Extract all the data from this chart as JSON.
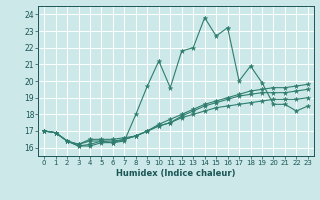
{
  "xlabel": "Humidex (Indice chaleur)",
  "bg_color": "#cce8e8",
  "grid_color": "#ffffff",
  "line_color": "#2e7d6e",
  "xlim": [
    -0.5,
    23.5
  ],
  "ylim": [
    15.5,
    24.5
  ],
  "yticks": [
    16,
    17,
    18,
    19,
    20,
    21,
    22,
    23,
    24
  ],
  "xticks": [
    0,
    1,
    2,
    3,
    4,
    5,
    6,
    7,
    8,
    9,
    10,
    11,
    12,
    13,
    14,
    15,
    16,
    17,
    18,
    19,
    20,
    21,
    22,
    23
  ],
  "line1_x": [
    0,
    1,
    2,
    3,
    4,
    5,
    6,
    7,
    8,
    9,
    10,
    11,
    12,
    13,
    14,
    15,
    16,
    17,
    18,
    19,
    20,
    21,
    22,
    23
  ],
  "line1_y": [
    17.0,
    16.9,
    16.4,
    16.1,
    16.2,
    16.4,
    16.3,
    16.4,
    18.0,
    19.7,
    21.2,
    19.6,
    21.8,
    22.0,
    23.8,
    22.7,
    23.2,
    20.0,
    20.9,
    19.9,
    18.6,
    18.6,
    18.2,
    18.5
  ],
  "line2_x": [
    0,
    1,
    2,
    3,
    4,
    5,
    6,
    7,
    8,
    9,
    10,
    11,
    12,
    13,
    14,
    15,
    16,
    17,
    18,
    19,
    20,
    21,
    22,
    23
  ],
  "line2_y": [
    17.0,
    16.9,
    16.4,
    16.2,
    16.5,
    16.5,
    16.5,
    16.6,
    16.7,
    17.0,
    17.3,
    17.5,
    17.9,
    18.2,
    18.5,
    18.7,
    18.9,
    19.1,
    19.2,
    19.3,
    19.3,
    19.3,
    19.4,
    19.5
  ],
  "line3_x": [
    0,
    1,
    2,
    3,
    4,
    5,
    6,
    7,
    8,
    9,
    10,
    11,
    12,
    13,
    14,
    15,
    16,
    17,
    18,
    19,
    20,
    21,
    22,
    23
  ],
  "line3_y": [
    17.0,
    16.9,
    16.4,
    16.2,
    16.4,
    16.4,
    16.4,
    16.5,
    16.7,
    17.0,
    17.4,
    17.7,
    18.0,
    18.3,
    18.6,
    18.8,
    19.0,
    19.2,
    19.4,
    19.5,
    19.6,
    19.6,
    19.7,
    19.8
  ],
  "line4_x": [
    0,
    1,
    2,
    3,
    4,
    5,
    6,
    7,
    8,
    9,
    10,
    11,
    12,
    13,
    14,
    15,
    16,
    17,
    18,
    19,
    20,
    21,
    22,
    23
  ],
  "line4_y": [
    17.0,
    16.9,
    16.4,
    16.1,
    16.1,
    16.3,
    16.3,
    16.5,
    16.7,
    17.0,
    17.3,
    17.5,
    17.8,
    18.0,
    18.2,
    18.4,
    18.5,
    18.6,
    18.7,
    18.8,
    18.9,
    18.9,
    18.9,
    19.0
  ]
}
